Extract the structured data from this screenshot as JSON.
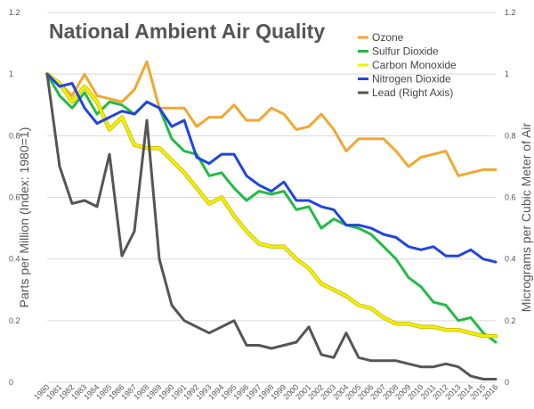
{
  "chart_data": {
    "type": "line",
    "title": "National Ambient Air Quality",
    "ylabel": "Parts per Million (Index: 1980=1)",
    "y2label": "Micrograms per Cubic Meter of Air",
    "ylim": [
      0,
      1.2
    ],
    "y2lim": [
      0,
      1.2
    ],
    "y_ticks": [
      "0",
      "0.2",
      "0.4",
      "0.6",
      "0.8",
      "1",
      "1.2"
    ],
    "y2_ticks": [
      "0",
      "0.2",
      "0.4",
      "0.6",
      "0.8",
      "1",
      "1.2"
    ],
    "grid": "horizontal",
    "legend_position": "top-right",
    "x": [
      "1980",
      "1981",
      "1982",
      "1983",
      "1984",
      "1985",
      "1986",
      "1987",
      "1988",
      "1989",
      "1990",
      "1991",
      "1992",
      "1993",
      "1994",
      "1995",
      "1996",
      "1997",
      "1998",
      "1999",
      "2000",
      "2001",
      "2002",
      "2003",
      "2004",
      "2005",
      "2006",
      "2007",
      "2008",
      "2009",
      "2010",
      "2011",
      "2012",
      "2013",
      "2014",
      "2015",
      "2016"
    ],
    "series": [
      {
        "name": "Ozone",
        "color": "#f0a830",
        "axis": "left",
        "values": [
          1.0,
          0.97,
          0.93,
          1.0,
          0.93,
          0.92,
          0.91,
          0.95,
          1.04,
          0.89,
          0.89,
          0.89,
          0.83,
          0.86,
          0.86,
          0.9,
          0.85,
          0.85,
          0.89,
          0.87,
          0.82,
          0.83,
          0.87,
          0.82,
          0.75,
          0.79,
          0.79,
          0.79,
          0.75,
          0.7,
          0.73,
          0.74,
          0.75,
          0.67,
          0.68,
          0.69,
          0.69
        ]
      },
      {
        "name": "Sulfur Dioxide",
        "color": "#22bb44",
        "axis": "left",
        "values": [
          1.0,
          0.93,
          0.89,
          0.94,
          0.87,
          0.91,
          0.9,
          0.87,
          0.91,
          0.89,
          0.79,
          0.75,
          0.74,
          0.67,
          0.68,
          0.63,
          0.59,
          0.62,
          0.61,
          0.62,
          0.56,
          0.57,
          0.5,
          0.53,
          0.51,
          0.5,
          0.48,
          0.44,
          0.4,
          0.34,
          0.31,
          0.26,
          0.25,
          0.2,
          0.21,
          0.16,
          0.13
        ]
      },
      {
        "name": "Carbon Monoxide",
        "color": "#f0f000",
        "axis": "left",
        "values": [
          1.0,
          0.97,
          0.91,
          0.96,
          0.91,
          0.82,
          0.86,
          0.77,
          0.76,
          0.76,
          0.72,
          0.68,
          0.63,
          0.58,
          0.6,
          0.54,
          0.49,
          0.45,
          0.44,
          0.44,
          0.4,
          0.37,
          0.32,
          0.3,
          0.28,
          0.25,
          0.24,
          0.21,
          0.19,
          0.19,
          0.18,
          0.18,
          0.17,
          0.17,
          0.16,
          0.15,
          0.15
        ]
      },
      {
        "name": "Nitrogen Dioxide",
        "color": "#2244dd",
        "axis": "left",
        "values": [
          1.0,
          0.96,
          0.97,
          0.89,
          0.84,
          0.86,
          0.88,
          0.87,
          0.91,
          0.89,
          0.83,
          0.85,
          0.73,
          0.71,
          0.74,
          0.74,
          0.67,
          0.64,
          0.62,
          0.65,
          0.59,
          0.59,
          0.57,
          0.56,
          0.51,
          0.51,
          0.5,
          0.48,
          0.47,
          0.44,
          0.43,
          0.44,
          0.41,
          0.41,
          0.43,
          0.4,
          0.39
        ]
      },
      {
        "name": "Lead (Right Axis)",
        "color": "#555555",
        "axis": "right",
        "values": [
          1.0,
          0.7,
          0.58,
          0.59,
          0.57,
          0.74,
          0.41,
          0.49,
          0.85,
          0.4,
          0.25,
          0.2,
          0.18,
          0.16,
          0.18,
          0.2,
          0.12,
          0.12,
          0.11,
          0.12,
          0.13,
          0.18,
          0.09,
          0.08,
          0.16,
          0.08,
          0.07,
          0.07,
          0.07,
          0.06,
          0.05,
          0.05,
          0.06,
          0.05,
          0.02,
          0.01,
          0.01
        ]
      }
    ]
  }
}
